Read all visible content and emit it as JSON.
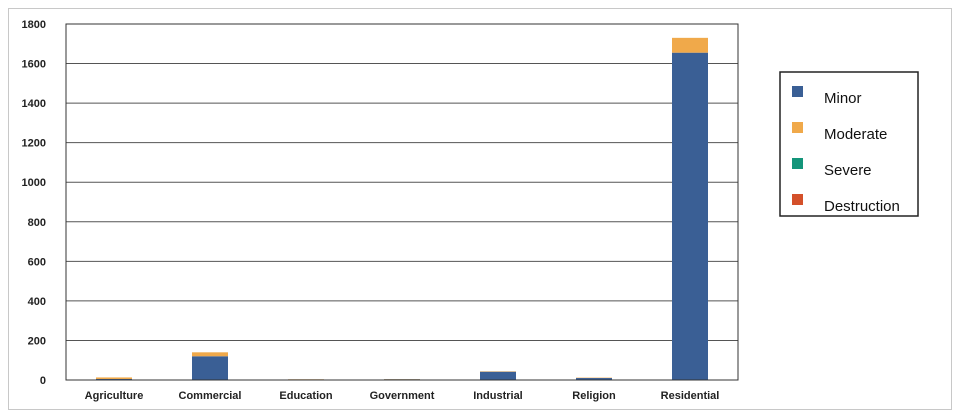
{
  "chart_data": {
    "type": "bar",
    "stacked": true,
    "categories": [
      "Agriculture",
      "Commercial",
      "Education",
      "Government",
      "Industrial",
      "Religion",
      "Residential"
    ],
    "series": [
      {
        "name": "Minor",
        "color": "#3a5f95",
        "values": [
          5,
          120,
          3,
          4,
          42,
          10,
          1655
        ]
      },
      {
        "name": "Moderate",
        "color": "#f0a94a",
        "values": [
          8,
          20,
          1,
          1,
          2,
          2,
          75
        ]
      },
      {
        "name": "Severe",
        "color": "#14957a",
        "values": [
          0,
          0,
          0,
          0,
          0,
          0,
          0
        ]
      },
      {
        "name": "Destruction",
        "color": "#d4502a",
        "values": [
          0,
          0,
          0,
          0,
          0,
          0,
          0
        ]
      }
    ],
    "yticks": [
      0,
      200,
      400,
      600,
      800,
      1000,
      1200,
      1400,
      1600,
      1800
    ],
    "ylim": [
      0,
      1800
    ],
    "grid": true,
    "legend_position": "right"
  }
}
